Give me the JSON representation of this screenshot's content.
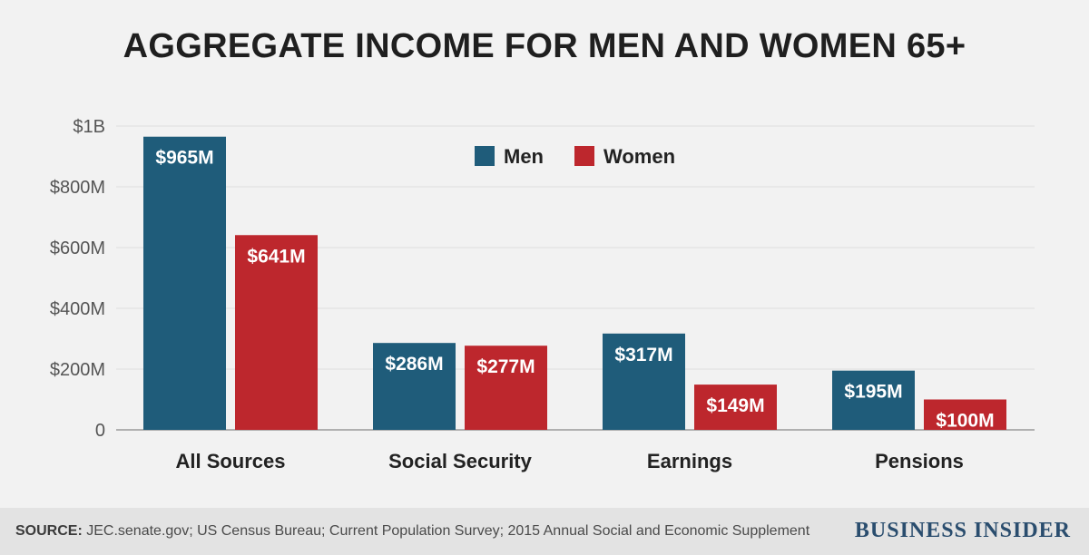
{
  "chart_data": {
    "type": "bar",
    "title": "AGGREGATE INCOME FOR MEN AND WOMEN 65+",
    "categories": [
      "All Sources",
      "Social Security",
      "Earnings",
      "Pensions"
    ],
    "series": [
      {
        "name": "Men",
        "color": "#1f5c7a",
        "values": [
          965,
          286,
          317,
          195
        ],
        "labels": [
          "$965M",
          "$286M",
          "$317M",
          "$195M"
        ]
      },
      {
        "name": "Women",
        "color": "#bd272d",
        "values": [
          641,
          277,
          149,
          100
        ],
        "labels": [
          "$641M",
          "$277M",
          "$149M",
          "$100M"
        ]
      }
    ],
    "y_ticks": [
      {
        "value": 0,
        "label": "0"
      },
      {
        "value": 200,
        "label": "$200M"
      },
      {
        "value": 400,
        "label": "$400M"
      },
      {
        "value": 600,
        "label": "$600M"
      },
      {
        "value": 800,
        "label": "$800M"
      },
      {
        "value": 1000,
        "label": "$1B"
      }
    ],
    "ylim": [
      0,
      1000
    ],
    "unit": "millions of dollars",
    "grid": true,
    "legend_position": "top-center"
  },
  "footer": {
    "source_label": "SOURCE:",
    "source_text": "JEC.senate.gov; US Census Bureau; Current Population Survey; 2015 Annual Social and Economic Supplement",
    "brand": "BUSINESS INSIDER"
  },
  "colors": {
    "background": "#f2f2f2",
    "footer_background": "#e3e3e3",
    "gridline": "#dedede",
    "baseline": "#9a9a9a",
    "brand": "#2a4d6e"
  }
}
